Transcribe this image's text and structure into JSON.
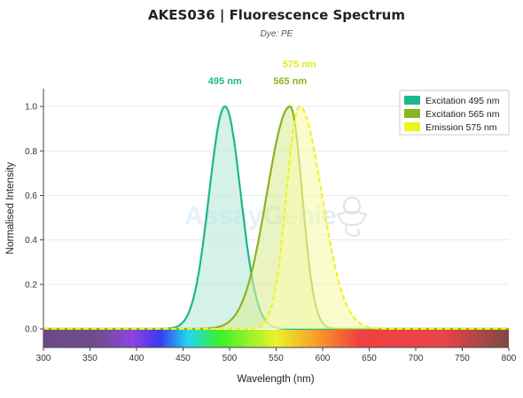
{
  "title": "AKES036  |  Fluorescence Spectrum",
  "subtitle": "Dye: PE",
  "watermark": {
    "part1": "Assay",
    "part2": "Genie"
  },
  "chart_data": {
    "type": "area",
    "xlabel": "Wavelength (nm)",
    "ylabel": "Normalised Intensity",
    "xlim": [
      300,
      800
    ],
    "ylim": [
      0,
      1.08
    ],
    "x_ticks": [
      300,
      350,
      400,
      450,
      500,
      550,
      600,
      650,
      700,
      750,
      800
    ],
    "y_ticks": [
      0.0,
      0.2,
      0.4,
      0.6,
      0.8,
      1.0
    ],
    "grid": "horizontal",
    "legend_position": "top-right",
    "series": [
      {
        "name": "Excitation  495 nm",
        "kind": "excitation",
        "peak": 495,
        "width_left": 17,
        "width_right": 17,
        "color": "#1db88a",
        "fill": "#b8eadb",
        "dashed": false
      },
      {
        "name": "Excitation  565 nm",
        "kind": "excitation",
        "peak": 565,
        "width_left": 25,
        "width_right": 13,
        "color": "#8ab41e",
        "fill": "#dcec9a",
        "dashed": false
      },
      {
        "name": "Emission  575 nm",
        "kind": "emission",
        "peak": 575,
        "width_left": 14,
        "width_right": 24,
        "color": "#eef51e",
        "fill": "#f6faae",
        "dashed": true
      }
    ],
    "peak_labels": [
      {
        "text": "495 nm",
        "x": 495,
        "row": 1,
        "color": "#1db88a"
      },
      {
        "text": "565 nm",
        "x": 565,
        "row": 1,
        "color": "#8ab41e"
      },
      {
        "text": "575 nm",
        "x": 575,
        "row": 2,
        "color": "#e4ea1a"
      }
    ]
  }
}
